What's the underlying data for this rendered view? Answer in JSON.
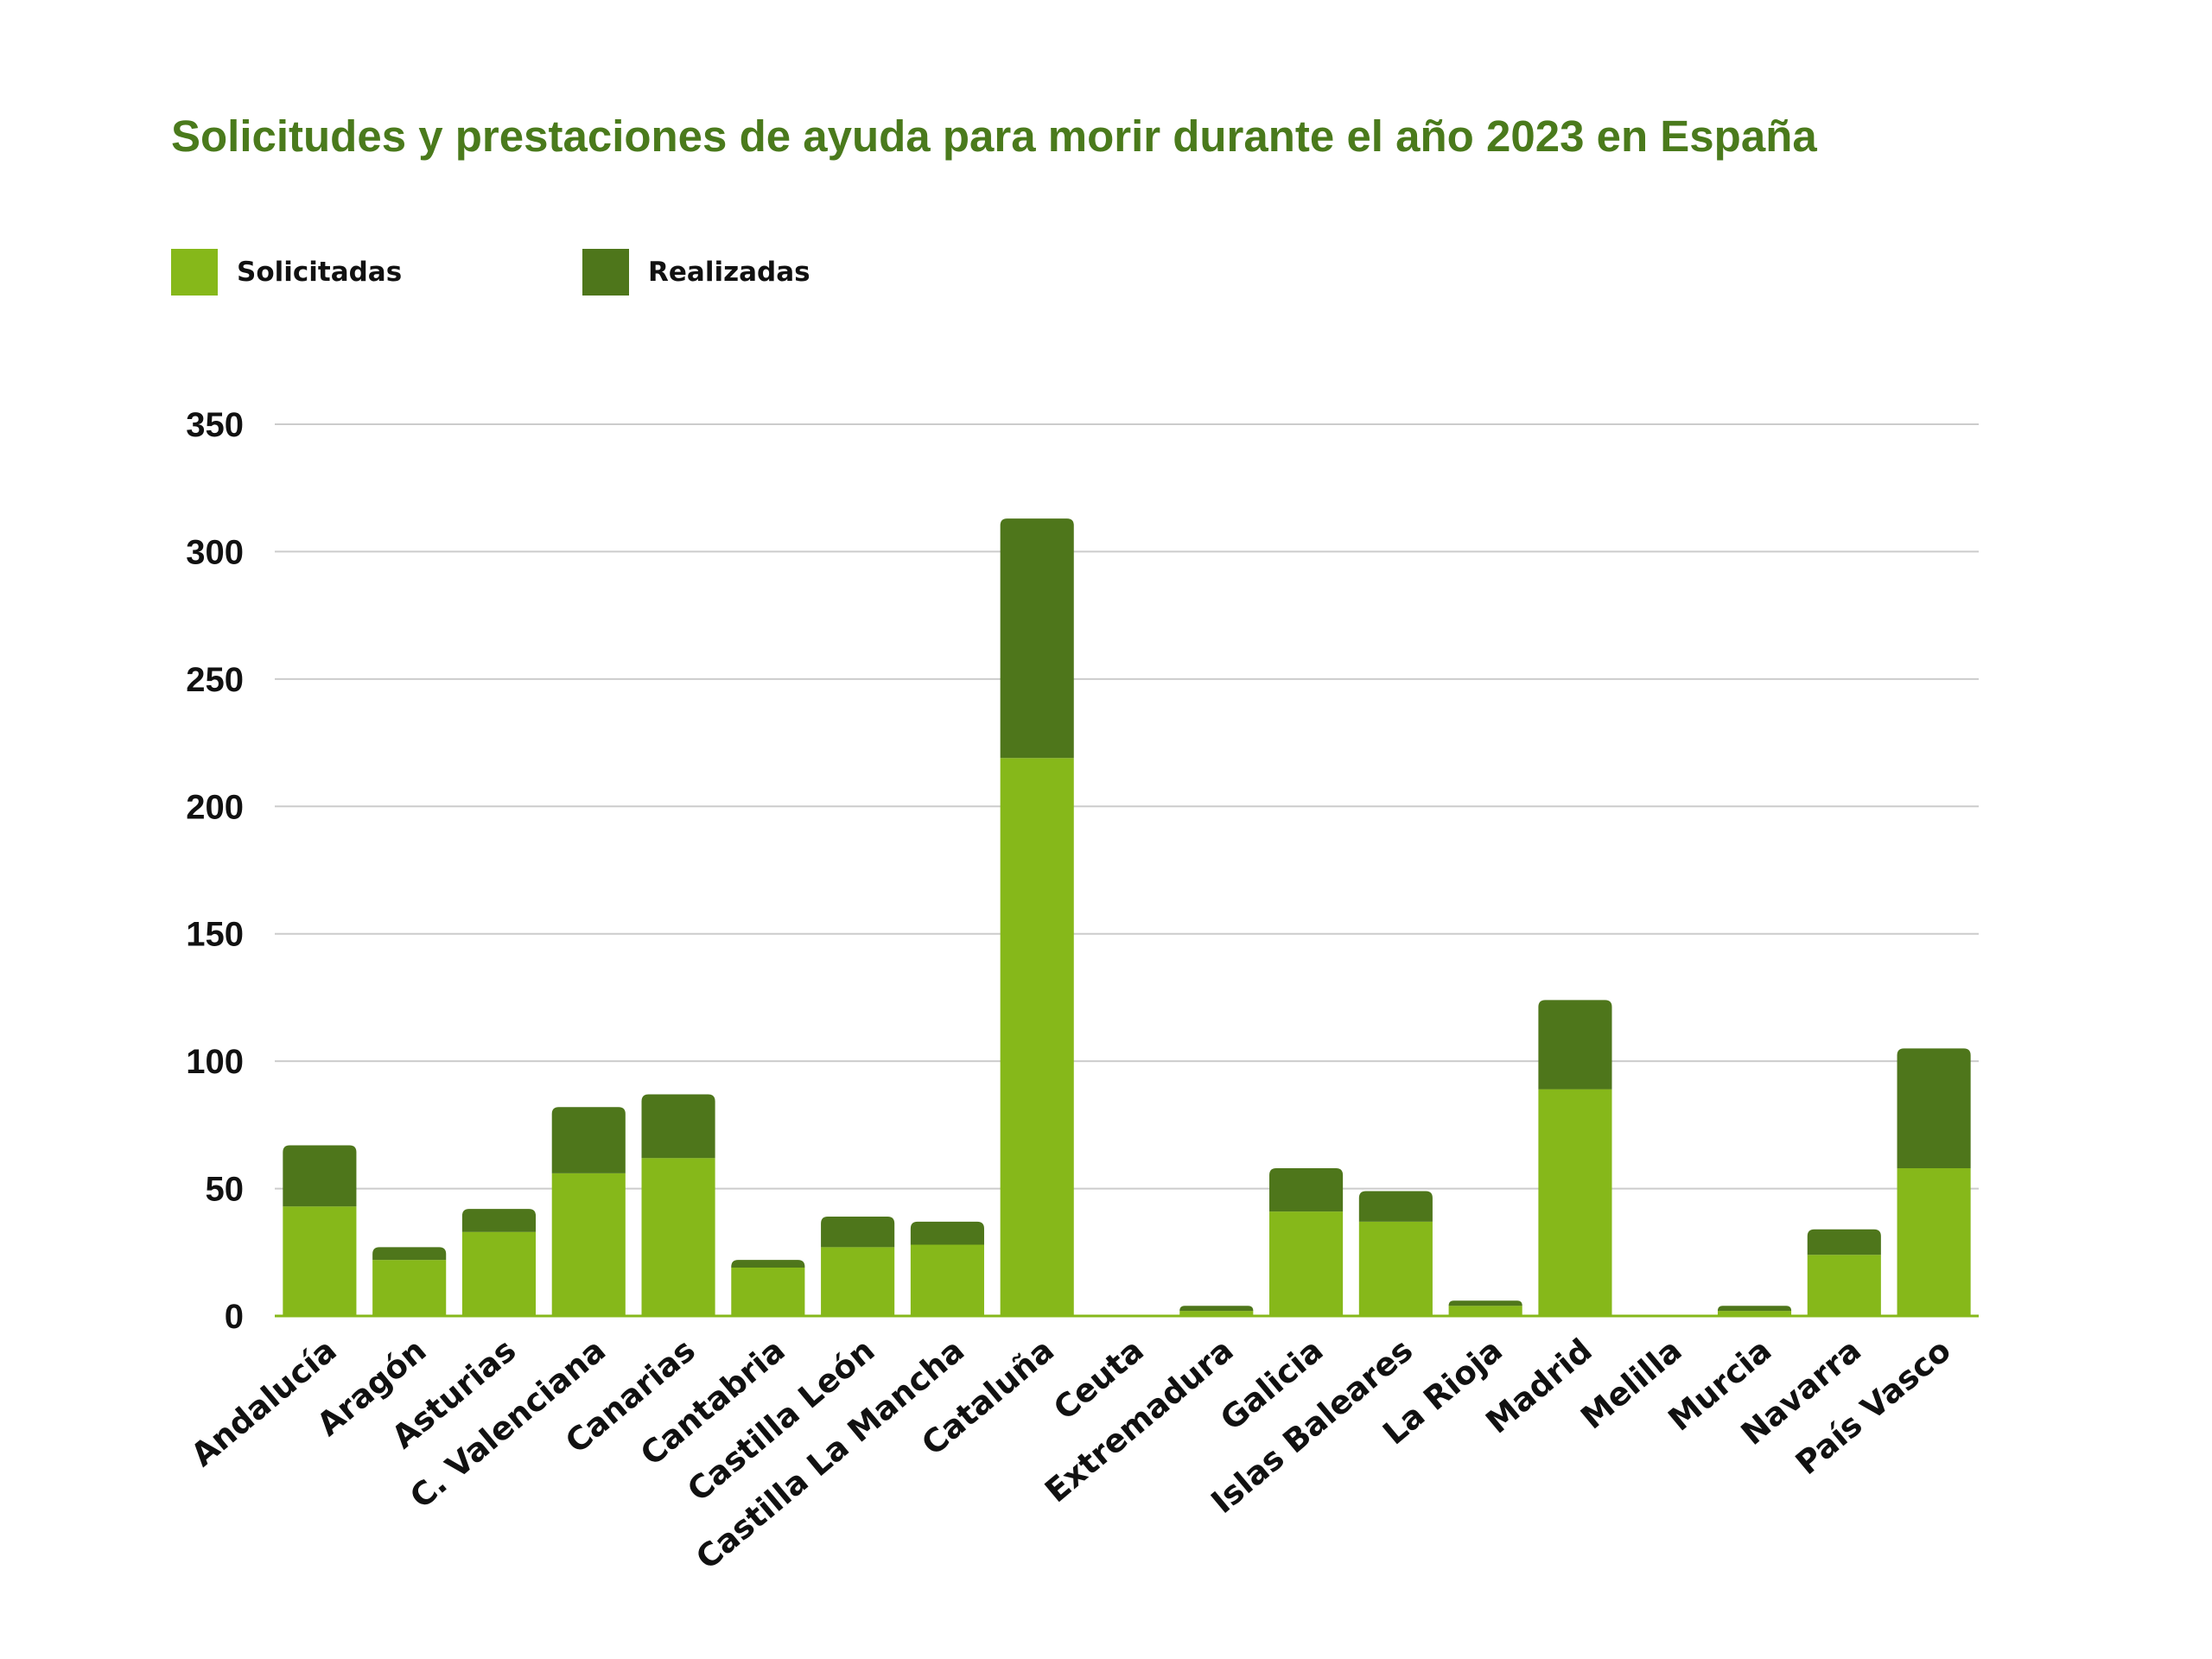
{
  "chart_data": {
    "type": "bar",
    "stacked": true,
    "title": "Solicitudes y prestaciones de ayuda para morir durante el año 2023 en España",
    "xlabel": "",
    "ylabel": "",
    "ylim": [
      0,
      350
    ],
    "yticks": [
      0,
      50,
      100,
      150,
      200,
      250,
      300,
      350
    ],
    "grid": true,
    "legend_position": "top-left",
    "categories": [
      "Andalucía",
      "Aragón",
      "Asturias",
      "C. Valenciana",
      "Canarias",
      "Cantabria",
      "Castilla León",
      "Castilla La Mancha",
      "Cataluña",
      "Ceuta",
      "Extremadura",
      "Galicia",
      "Islas Baleares",
      "La Rioja",
      "Madrid",
      "Melilla",
      "Murcia",
      "Navarra",
      "País Vasco"
    ],
    "series": [
      {
        "name": "Solicitadas",
        "color": "#86b81a",
        "values": [
          43,
          22,
          33,
          56,
          62,
          19,
          27,
          28,
          219,
          0,
          2,
          41,
          37,
          4,
          89,
          0,
          2,
          24,
          58
        ]
      },
      {
        "name": "Realizadas",
        "color": "#4e761b",
        "values": [
          24,
          5,
          9,
          26,
          25,
          3,
          12,
          9,
          94,
          0,
          2,
          17,
          12,
          2,
          35,
          0,
          2,
          10,
          47
        ]
      }
    ]
  },
  "colors": {
    "title": "#4a7a1c",
    "grid": "#cccccc",
    "axis_text": "#111111"
  }
}
